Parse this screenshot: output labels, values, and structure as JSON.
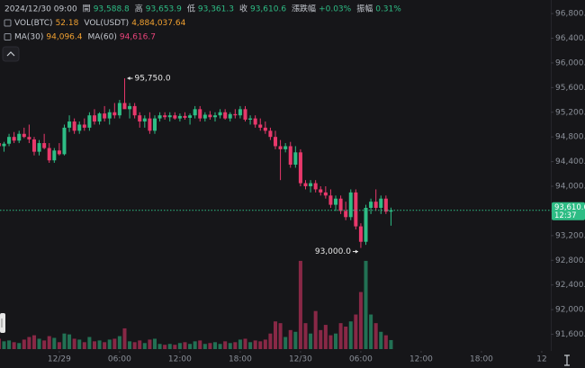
{
  "chart_data": {
    "type": "candlestick",
    "header": {
      "datetime": "2024/12/30 09:00",
      "rows": [
        [
          {
            "name": "開",
            "value": "93,588.8",
            "color": "#2ebd85"
          },
          {
            "name": "高",
            "value": "93,653.9",
            "color": "#2ebd85"
          },
          {
            "name": "低",
            "value": "93,361.3",
            "color": "#2ebd85"
          },
          {
            "name": "收",
            "value": "93,610.6",
            "color": "#2ebd85"
          },
          {
            "name": "漲跌幅",
            "value": "+0.03%",
            "color": "#2ebd85"
          },
          {
            "name": "振幅",
            "value": "0.31%",
            "color": "#2ebd85"
          }
        ],
        [
          {
            "name": "VOL(BTC)",
            "value": "52.18",
            "color": "#f0a030"
          },
          {
            "name": "VOL(USDT)",
            "value": "4,884,037.64",
            "color": "#f0a030"
          }
        ],
        [
          {
            "name": "MA(30)",
            "value": "94,096.4",
            "color": "#f0a030"
          },
          {
            "name": "MA(60)",
            "value": "94,616.7",
            "color": "#e8437a"
          }
        ]
      ]
    },
    "up_color": "#2ebd85",
    "down_color": "#e8386b",
    "open": [
      94700,
      94650,
      94690,
      94800,
      94740,
      94850,
      94800,
      94760,
      94560,
      94700,
      94620,
      94420,
      94580,
      94520,
      94950,
      95050,
      94900,
      95000,
      94950,
      95150,
      95050,
      95180,
      95100,
      95200,
      95150,
      95350,
      95250,
      95300,
      95150,
      95050,
      95100,
      94900,
      95100,
      95150,
      95120,
      95150,
      95100,
      95140,
      95110,
      95150,
      95250,
      95100,
      95160,
      95120,
      95150,
      95200,
      95100,
      95170,
      95150,
      95250,
      95080,
      95100,
      95000,
      94950,
      94900,
      94800,
      94650,
      94600,
      94650,
      94350,
      94550,
      94050,
      94000,
      94050,
      93950,
      93900,
      93850,
      93700,
      93800,
      93600,
      93500,
      93900,
      93350,
      93100,
      93650,
      93750,
      93650,
      93800,
      93588.8
    ],
    "high": [
      94780,
      94720,
      94850,
      94880,
      94900,
      94950,
      95000,
      94800,
      94750,
      94850,
      94700,
      94620,
      94700,
      95000,
      95150,
      95100,
      95050,
      95100,
      95200,
      95250,
      95200,
      95300,
      95250,
      95350,
      95400,
      95750,
      95350,
      95350,
      95200,
      95150,
      95200,
      95150,
      95200,
      95200,
      95200,
      95200,
      95180,
      95200,
      95180,
      95300,
      95300,
      95200,
      95220,
      95200,
      95250,
      95250,
      95200,
      95250,
      95300,
      95300,
      95150,
      95150,
      95100,
      95050,
      94950,
      94900,
      94750,
      94700,
      94720,
      94650,
      94600,
      94100,
      94100,
      94100,
      94000,
      94000,
      93950,
      93850,
      93850,
      93750,
      93950,
      93950,
      93400,
      93700,
      93800,
      93950,
      93850,
      93850,
      93653.9
    ],
    "low": [
      94620,
      94560,
      94650,
      94700,
      94700,
      94780,
      94700,
      94500,
      94500,
      94600,
      94380,
      94380,
      94500,
      94500,
      94880,
      94850,
      94850,
      94900,
      94900,
      95000,
      95000,
      95050,
      95000,
      95100,
      95100,
      95300,
      95100,
      95100,
      94950,
      94950,
      94850,
      94850,
      95050,
      95080,
      95050,
      95080,
      95050,
      95080,
      95000,
      95100,
      95050,
      95050,
      95080,
      95050,
      95100,
      95080,
      95050,
      95100,
      95100,
      95050,
      95000,
      94950,
      94900,
      94850,
      94750,
      94600,
      94100,
      94550,
      94300,
      94300,
      94000,
      93950,
      93900,
      93900,
      93850,
      93800,
      93650,
      93600,
      93550,
      93450,
      93450,
      93300,
      93000,
      93050,
      93550,
      93600,
      93550,
      93550,
      93361.3
    ],
    "close": [
      94650,
      94690,
      94800,
      94740,
      94850,
      94800,
      94760,
      94560,
      94700,
      94620,
      94420,
      94580,
      94520,
      94950,
      95050,
      94900,
      95000,
      94950,
      95150,
      95050,
      95180,
      95100,
      95200,
      95150,
      95350,
      95250,
      95300,
      95150,
      95050,
      95100,
      94900,
      95100,
      95150,
      95120,
      95150,
      95100,
      95140,
      95110,
      95150,
      95250,
      95100,
      95160,
      95120,
      95150,
      95200,
      95100,
      95170,
      95150,
      95250,
      95080,
      95100,
      95000,
      94950,
      94900,
      94800,
      94650,
      94600,
      94650,
      94350,
      94550,
      94050,
      94000,
      94050,
      93950,
      93900,
      93850,
      93700,
      93800,
      93600,
      93500,
      93900,
      93350,
      93100,
      93650,
      93750,
      93650,
      93800,
      93588.8,
      93610.6
    ],
    "volume": [
      60,
      45,
      50,
      40,
      35,
      55,
      70,
      80,
      60,
      50,
      75,
      65,
      40,
      90,
      85,
      60,
      55,
      40,
      70,
      45,
      50,
      40,
      55,
      60,
      75,
      120,
      45,
      40,
      50,
      35,
      55,
      60,
      30,
      25,
      30,
      25,
      35,
      40,
      30,
      45,
      50,
      30,
      35,
      40,
      30,
      45,
      35,
      40,
      55,
      60,
      40,
      50,
      45,
      55,
      90,
      160,
      150,
      70,
      110,
      100,
      510,
      150,
      90,
      220,
      110,
      140,
      80,
      90,
      150,
      130,
      160,
      200,
      330,
      510,
      200,
      150,
      100,
      80,
      52.18
    ],
    "xlim": [
      0.2,
      109.8
    ],
    "xticks": [
      {
        "value": 12,
        "label": "12/29"
      },
      {
        "value": 24,
        "label": "06:00"
      },
      {
        "value": 36,
        "label": "12:00"
      },
      {
        "value": 48,
        "label": "18:00"
      },
      {
        "value": 60,
        "label": "12/30"
      },
      {
        "value": 72,
        "label": "06:00"
      },
      {
        "value": 84,
        "label": "12:00"
      },
      {
        "value": 96,
        "label": "18:00"
      },
      {
        "value": 108,
        "label": "12"
      }
    ],
    "ylim": [
      91360,
      97020
    ],
    "yticks": [
      {
        "value": 96800,
        "label": "96,800.0"
      },
      {
        "value": 96400,
        "label": "96,400.0"
      },
      {
        "value": 96000,
        "label": "96,000.0"
      },
      {
        "value": 95600,
        "label": "95,600.0"
      },
      {
        "value": 95200,
        "label": "95,200.0"
      },
      {
        "value": 94800,
        "label": "94,800.0"
      },
      {
        "value": 94400,
        "label": "94,400.0"
      },
      {
        "value": 94000,
        "label": "94,000.0"
      },
      {
        "value": 93600,
        "label": "93,600.0"
      },
      {
        "value": 93200,
        "label": "93,200.0"
      },
      {
        "value": 92800,
        "label": "92,800.0"
      },
      {
        "value": 92400,
        "label": "92,400.0"
      },
      {
        "value": 92000,
        "label": "92,000.0"
      },
      {
        "value": 91600,
        "label": "91,600.0"
      }
    ],
    "y2lim": [
      0,
      520
    ],
    "grid": false,
    "annotations": [
      {
        "index": 25,
        "value": 95750,
        "label": "95,750.0",
        "side": "right"
      },
      {
        "index": 72,
        "value": 93000,
        "label": "93,000.0",
        "side": "left"
      }
    ],
    "last_price": {
      "value": 93610.6,
      "label": "93,610.6",
      "countdown": "12:37",
      "color": "#2ebd85"
    }
  }
}
